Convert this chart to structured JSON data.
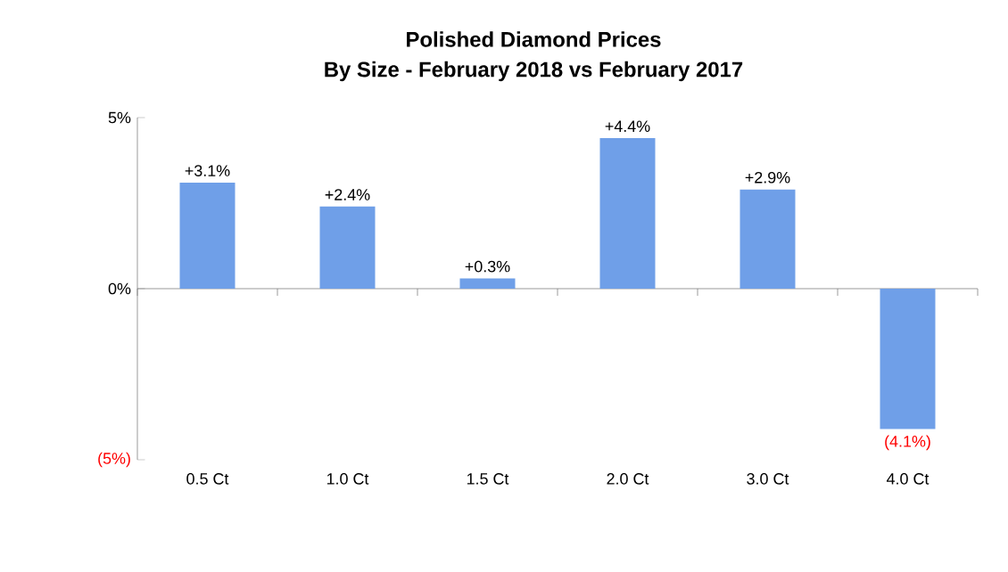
{
  "chart_data": {
    "type": "bar",
    "title": "Polished Diamond Prices",
    "subtitle": "By Size - February 2018 vs February 2017",
    "categories": [
      "0.5 Ct",
      "1.0 Ct",
      "1.5 Ct",
      "2.0 Ct",
      "3.0 Ct",
      "4.0 Ct"
    ],
    "values": [
      3.1,
      2.4,
      0.3,
      4.4,
      2.9,
      -4.1
    ],
    "value_labels": [
      "+3.1%",
      "+2.4%",
      "+0.3%",
      "+4.4%",
      "+2.9%",
      "(4.1%)"
    ],
    "color": "#6f9fe8",
    "ylim": [
      -5,
      5
    ],
    "yticks": [
      {
        "value": -5,
        "label": "(5%)"
      },
      {
        "value": 0,
        "label": "0%"
      },
      {
        "value": 5,
        "label": "5%"
      }
    ],
    "ref_lines": [
      {
        "axis": "y",
        "value": 0
      }
    ],
    "grid": false
  }
}
